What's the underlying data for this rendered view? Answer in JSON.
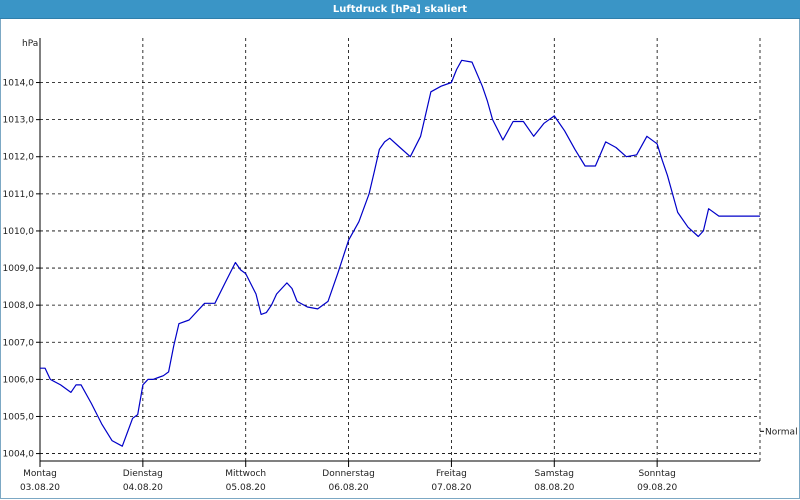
{
  "window": {
    "title": "Luftdruck [hPa] skaliert"
  },
  "chart_data": {
    "type": "line",
    "title": "Luftdruck [hPa] skaliert",
    "ylabel": "hPa",
    "ylim": [
      1003.8,
      1015.2
    ],
    "yticks": [
      "1004,0",
      "1005,0",
      "1006,0",
      "1007,0",
      "1008,0",
      "1009,0",
      "1010,0",
      "1011,0",
      "1012,0",
      "1013,0",
      "1014,0"
    ],
    "ytick_values": [
      1004,
      1005,
      1006,
      1007,
      1008,
      1009,
      1010,
      1011,
      1012,
      1013,
      1014
    ],
    "xlim": [
      0,
      7
    ],
    "x_categories": [
      {
        "day": "Montag",
        "date": "03.08.20"
      },
      {
        "day": "Dienstag",
        "date": "04.08.20"
      },
      {
        "day": "Mittwoch",
        "date": "05.08.20"
      },
      {
        "day": "Donnerstag",
        "date": "06.08.20"
      },
      {
        "day": "Freitag",
        "date": "07.08.20"
      },
      {
        "day": "Samstag",
        "date": "08.08.20"
      },
      {
        "day": "Sonntag",
        "date": "09.08.20"
      }
    ],
    "grid": true,
    "reference_line": {
      "label": "Normal",
      "value": 1004.6
    },
    "series": [
      {
        "color": "#0000c8",
        "x": [
          0.0,
          0.05,
          0.1,
          0.2,
          0.3,
          0.35,
          0.4,
          0.5,
          0.6,
          0.7,
          0.8,
          0.9,
          0.95,
          1.0,
          1.05,
          1.1,
          1.15,
          1.2,
          1.25,
          1.3,
          1.35,
          1.45,
          1.5,
          1.6,
          1.7,
          1.8,
          1.9,
          1.95,
          2.0,
          2.1,
          2.15,
          2.2,
          2.25,
          2.3,
          2.4,
          2.45,
          2.5,
          2.6,
          2.7,
          2.8,
          2.9,
          3.0,
          3.1,
          3.2,
          3.25,
          3.3,
          3.35,
          3.4,
          3.5,
          3.6,
          3.7,
          3.8,
          3.9,
          4.0,
          4.05,
          4.1,
          4.2,
          4.3,
          4.35,
          4.4,
          4.5,
          4.55,
          4.6,
          4.7,
          4.8,
          4.9,
          5.0,
          5.1,
          5.2,
          5.3,
          5.4,
          5.5,
          5.6,
          5.7,
          5.8,
          5.9,
          6.0,
          6.05,
          6.1,
          6.2,
          6.3,
          6.4,
          6.45,
          6.5,
          6.6,
          6.7,
          6.8,
          6.85,
          6.9,
          6.95,
          7.0
        ],
        "y": [
          1006.3,
          1006.3,
          1006.0,
          1005.85,
          1005.65,
          1005.85,
          1005.85,
          1005.35,
          1004.8,
          1004.35,
          1004.2,
          1004.95,
          1005.05,
          1005.85,
          1006.0,
          1006.0,
          1006.05,
          1006.1,
          1006.2,
          1006.9,
          1007.5,
          1007.6,
          1007.75,
          1008.05,
          1008.05,
          1008.6,
          1009.15,
          1008.95,
          1008.85,
          1008.3,
          1007.75,
          1007.8,
          1008.0,
          1008.3,
          1008.6,
          1008.45,
          1008.1,
          1007.95,
          1007.9,
          1008.1,
          1008.9,
          1009.75,
          1010.25,
          1011.0,
          1011.6,
          1012.2,
          1012.4,
          1012.5,
          1012.25,
          1012.0,
          1012.55,
          1013.75,
          1013.9,
          1014.0,
          1014.35,
          1014.6,
          1014.55,
          1013.9,
          1013.5,
          1013.0,
          1012.45,
          1012.7,
          1012.95,
          1012.95,
          1012.55,
          1012.9,
          1013.1,
          1012.7,
          1012.2,
          1011.75,
          1011.75,
          1012.4,
          1012.25,
          1012.0,
          1012.05,
          1012.55,
          1012.35,
          1011.9,
          1011.5,
          1010.5,
          1010.1,
          1009.85,
          1010.0,
          1010.6,
          1010.4,
          1010.4,
          1010.4,
          1010.4,
          1010.4,
          1010.4,
          1010.4
        ]
      }
    ]
  }
}
